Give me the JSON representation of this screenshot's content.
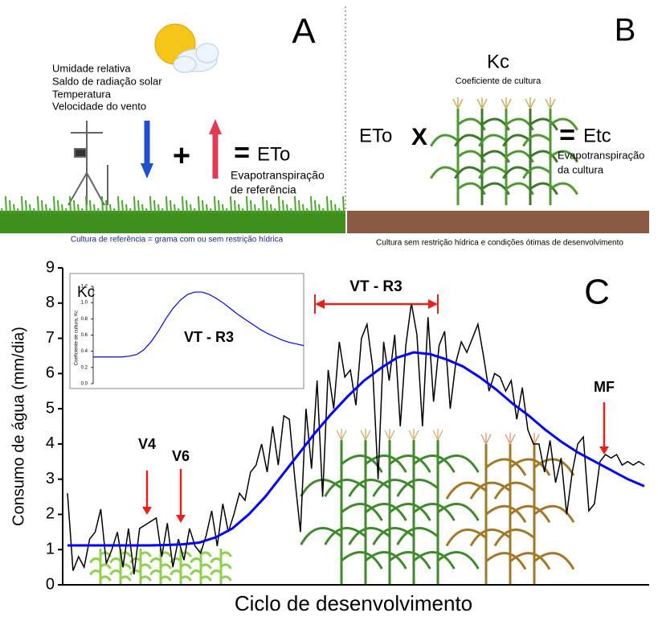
{
  "panel_a": {
    "letter": "A",
    "variables": [
      "Umidade relativa",
      "Saldo de radiação solar",
      "Temperatura",
      "Velocidade do vento"
    ],
    "plus": "+",
    "equals": "=",
    "result": "ETo",
    "result_label": [
      "Evapotranspiração",
      "de referência"
    ],
    "caption": "Cultura de referência = grama com ou sem restrição hídrica"
  },
  "panel_b": {
    "letter": "B",
    "eto": "ETo",
    "times": "X",
    "kc": "Kc",
    "kc_label": "Coeficiente de cultura",
    "equals": "=",
    "result": "Etc",
    "result_label": [
      "Evapotranspiração",
      "da cultura"
    ],
    "caption": "Cultura sem restrição hídrica e condições ótimas de desenvolvimento"
  },
  "chart_data": [
    {
      "type": "line",
      "letter": "C",
      "xlabel": "Ciclo de desenvolvimento",
      "ylabel": "Consumo de água (mm/dia)",
      "ylim": [
        0,
        9
      ],
      "yticks": [
        0,
        1,
        2,
        3,
        4,
        5,
        6,
        7,
        8,
        9
      ],
      "annotations": [
        "V4",
        "V6",
        "VT - R3",
        "MF"
      ],
      "series": [
        {
          "color": "#000000",
          "values": [
            2.6,
            0.4,
            0.8,
            0.5,
            1.3,
            1.5,
            2.15,
            0.6,
            1.0,
            1.5,
            0.5,
            1.6,
            0.3,
            1.6,
            1.7,
            1.8,
            1.9,
            0.8,
            1.75,
            0.5,
            1.3,
            0.7,
            1.6,
            1.1,
            0.9,
            1.4,
            2.1,
            1.1,
            2.3,
            1.5,
            2.0,
            2.6,
            2.4,
            3.2,
            3.4,
            4.0,
            3.2,
            4.5,
            3.4,
            4.8,
            4.7,
            3.0,
            1.5,
            5.0,
            3.3,
            5.8,
            2.5,
            6.1,
            5.0,
            6.9,
            5.9,
            6.1,
            5.1,
            7.0,
            7.4,
            6.2,
            3.0,
            6.9,
            5.8,
            7.1,
            4.5,
            6.8,
            8.0,
            7.1,
            4.5,
            7.6,
            5.2,
            6.8,
            7.2,
            5.0,
            6.3,
            6.9,
            6.6,
            7.0,
            7.4,
            6.5,
            5.5,
            6.0,
            5.9,
            5.5,
            5.8,
            4.7,
            5.6,
            4.4,
            4.0,
            4.0,
            3.2,
            4.1,
            2.9,
            3.6,
            2.0,
            3.2,
            4.0,
            4.2,
            2.1,
            2.3,
            3.5,
            3.7,
            3.6,
            3.7,
            3.4,
            3.5,
            3.4,
            3.5,
            3.4
          ]
        },
        {
          "color": "#0000ff",
          "values": [
            1.12,
            1.12,
            1.12,
            1.12,
            1.12,
            1.12,
            1.13,
            1.15,
            1.2,
            1.35,
            1.6,
            2.0,
            2.5,
            3.1,
            3.7,
            4.3,
            4.85,
            5.35,
            5.8,
            6.15,
            6.45,
            6.6,
            6.55,
            6.4,
            6.2,
            5.9,
            5.55,
            5.15,
            4.8,
            4.4,
            4.05,
            3.75,
            3.5,
            3.25,
            3.0,
            2.8
          ]
        }
      ]
    },
    {
      "type": "line",
      "title": "Kc",
      "ylabel": "Coeficiente de cultura, Kc",
      "annotation": "VT - R3",
      "ylim": [
        0,
        1.2
      ],
      "yticks": [
        {
          "value": 0,
          "label": "0.0"
        },
        0.2,
        0.4,
        0.6,
        0.8,
        {
          "value": 1,
          "label": "1.0"
        },
        1.2
      ],
      "series": [
        {
          "color": "#0000ff",
          "values": [
            0.33,
            0.33,
            0.33,
            0.33,
            0.33,
            0.34,
            0.36,
            0.42,
            0.52,
            0.65,
            0.8,
            0.93,
            1.03,
            1.1,
            1.13,
            1.13,
            1.1,
            1.05,
            0.99,
            0.92,
            0.85,
            0.79,
            0.73,
            0.67,
            0.62,
            0.58,
            0.54,
            0.51,
            0.49,
            0.47
          ]
        }
      ]
    }
  ]
}
